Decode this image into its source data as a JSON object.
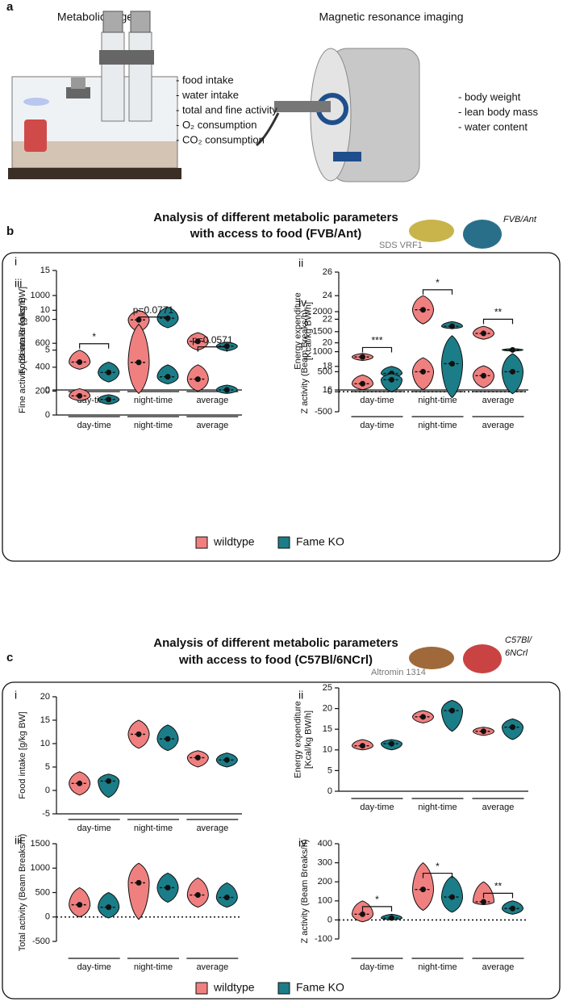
{
  "panel_a": {
    "label": "a",
    "left_title": "Metabolic cage",
    "left_items": [
      "- food intake",
      "- water intake",
      "- total and fine activity",
      "- O₂ consumption",
      "- CO₂ consumption"
    ],
    "right_title": "Magnetic resonance imaging",
    "right_items": [
      "- body weight",
      "- lean body mass",
      "- water content"
    ]
  },
  "panel_b": {
    "label": "b",
    "title": [
      "Analysis of different metabolic parameters",
      "with access to food (FVB/Ant)"
    ],
    "food": "SDS VRF1",
    "strain": [
      "FVB/Ant"
    ]
  },
  "panel_c": {
    "label": "c",
    "title": [
      "Analysis of different metabolic parameters",
      "with access to food (C57Bl/6NCrl)"
    ],
    "food": "Altromin 1314",
    "strain": [
      "C57Bl/",
      "6NCrl"
    ]
  },
  "chart_data": [
    {
      "type": "violin",
      "panel_label": "i",
      "y_label": [
        "Food intake [g/kg BW]"
      ],
      "ylim": [
        0,
        15
      ],
      "yticks": [
        0,
        5,
        10,
        15
      ],
      "zero_line": false,
      "categories": [
        "day-time",
        "night-time",
        "average"
      ],
      "series": [
        {
          "name": "wildtype",
          "color": "#f08080",
          "mins": [
            2.6,
            7.3,
            5.0
          ],
          "values": [
            3.5,
            8.8,
            6.1
          ],
          "maxs": [
            5.0,
            10.0,
            7.2
          ]
        },
        {
          "name": "Fame KO",
          "color": "#1b7d88",
          "mins": [
            1.0,
            7.8,
            4.9
          ],
          "values": [
            2.2,
            9.0,
            5.5
          ],
          "maxs": [
            3.5,
            10.4,
            6.0
          ]
        }
      ],
      "annotations": [
        "*",
        null,
        null
      ],
      "annotation_y": [
        5.8,
        null,
        null
      ]
    },
    {
      "type": "violin",
      "panel_label": "ii",
      "y_label": [
        "Energy expenditure",
        "[Kcal/kg BW/h]"
      ],
      "ylim": [
        16,
        26
      ],
      "yticks": [
        16,
        18,
        20,
        22,
        24,
        26
      ],
      "zero_line": false,
      "categories": [
        "day-time",
        "night-time",
        "average"
      ],
      "series": [
        {
          "name": "wildtype",
          "color": "#f08080",
          "mins": [
            18.5,
            21.6,
            20.3
          ],
          "values": [
            18.8,
            22.8,
            20.8
          ],
          "maxs": [
            19.1,
            24.0,
            21.4
          ]
        },
        {
          "name": "Fame KO",
          "color": "#1b7d88",
          "mins": [
            17.1,
            21.2,
            19.3
          ],
          "values": [
            17.4,
            21.4,
            19.4
          ],
          "maxs": [
            18.0,
            21.8,
            19.5
          ]
        }
      ],
      "annotations": [
        "***",
        "*",
        "**"
      ],
      "annotation_y": [
        19.6,
        24.5,
        22.0
      ]
    },
    {
      "type": "violin",
      "panel_label": "iii",
      "y_label": [
        "Fine activity (Beam Breaks/h)"
      ],
      "ylim": [
        0,
        1000
      ],
      "yticks": [
        0,
        200,
        400,
        600,
        800,
        1000
      ],
      "zero_line": false,
      "categories": [
        "day-time",
        "night-time",
        "average"
      ],
      "series": [
        {
          "name": "wildtype",
          "color": "#f08080",
          "mins": [
            120,
            180,
            200
          ],
          "values": [
            160,
            440,
            300
          ],
          "maxs": [
            220,
            760,
            420
          ]
        },
        {
          "name": "Fame KO",
          "color": "#1b7d88",
          "mins": [
            90,
            260,
            180
          ],
          "values": [
            130,
            320,
            210
          ],
          "maxs": [
            170,
            420,
            250
          ]
        }
      ],
      "annotations": [
        null,
        "p=0.0771",
        "p=0.0571"
      ],
      "annotation_y": [
        null,
        820,
        570
      ]
    },
    {
      "type": "violin",
      "panel_label": "iv",
      "y_label": [
        "Z activity (Beam Breaks/h)"
      ],
      "ylim": [
        -500,
        2000
      ],
      "yticks": [
        -500,
        0,
        500,
        1000,
        1500,
        2000
      ],
      "zero_line": true,
      "categories": [
        "day-time",
        "night-time",
        "average"
      ],
      "series": [
        {
          "name": "wildtype",
          "color": "#f08080",
          "mins": [
            50,
            50,
            100
          ],
          "values": [
            200,
            500,
            400
          ],
          "maxs": [
            420,
            850,
            650
          ]
        },
        {
          "name": "Fame KO",
          "color": "#1b7d88",
          "mins": [
            0,
            -150,
            -50
          ],
          "values": [
            300,
            700,
            500
          ],
          "maxs": [
            450,
            1400,
            950
          ]
        }
      ],
      "annotations": [
        null,
        null,
        null
      ],
      "annotation_y": [
        null,
        null,
        null
      ]
    },
    {
      "type": "violin",
      "panel_label": "i",
      "y_label": [
        "Food intake [g/kg BW]"
      ],
      "ylim": [
        -5,
        20
      ],
      "yticks": [
        -5,
        0,
        5,
        10,
        15,
        20
      ],
      "zero_line": false,
      "categories": [
        "day-time",
        "night-time",
        "average"
      ],
      "series": [
        {
          "name": "wildtype",
          "color": "#f08080",
          "mins": [
            -1,
            9,
            5
          ],
          "values": [
            1.5,
            12,
            7
          ],
          "maxs": [
            4,
            15,
            8.5
          ]
        },
        {
          "name": "Fame KO",
          "color": "#1b7d88",
          "mins": [
            -1.5,
            8.5,
            5
          ],
          "values": [
            2,
            11,
            6.5
          ],
          "maxs": [
            3.5,
            14,
            8
          ]
        }
      ],
      "annotations": [
        null,
        null,
        null
      ],
      "annotation_y": [
        null,
        null,
        null
      ]
    },
    {
      "type": "violin",
      "panel_label": "ii",
      "y_label": [
        "Energy expenditure",
        "[Kcal/kg BW/h]"
      ],
      "ylim": [
        0,
        25
      ],
      "yticks": [
        0,
        5,
        10,
        15,
        20,
        25
      ],
      "zero_line": false,
      "categories": [
        "day-time",
        "night-time",
        "average"
      ],
      "series": [
        {
          "name": "wildtype",
          "color": "#f08080",
          "mins": [
            10,
            16.5,
            13.5
          ],
          "values": [
            11,
            18,
            14.5
          ],
          "maxs": [
            12.5,
            19.5,
            15.5
          ]
        },
        {
          "name": "Fame KO",
          "color": "#1b7d88",
          "mins": [
            10,
            14.5,
            12.5
          ],
          "values": [
            11.5,
            19.5,
            15.5
          ],
          "maxs": [
            12.5,
            22,
            17.5
          ]
        }
      ],
      "annotations": [
        null,
        null,
        null
      ],
      "annotation_y": [
        null,
        null,
        null
      ]
    },
    {
      "type": "violin",
      "panel_label": "iii",
      "y_label": [
        "Total activity (Beam Breaks/h)"
      ],
      "ylim": [
        -500,
        1500
      ],
      "yticks": [
        -500,
        0,
        500,
        1000,
        1500
      ],
      "zero_line": true,
      "categories": [
        "day-time",
        "night-time",
        "average"
      ],
      "series": [
        {
          "name": "wildtype",
          "color": "#f08080",
          "mins": [
            0,
            -50,
            200
          ],
          "values": [
            250,
            700,
            450
          ],
          "maxs": [
            600,
            1100,
            800
          ]
        },
        {
          "name": "Fame KO",
          "color": "#1b7d88",
          "mins": [
            -20,
            300,
            200
          ],
          "values": [
            200,
            600,
            400
          ],
          "maxs": [
            500,
            900,
            700
          ]
        }
      ],
      "annotations": [
        null,
        null,
        null
      ],
      "annotation_y": [
        null,
        null,
        null
      ]
    },
    {
      "type": "violin",
      "panel_label": "iv",
      "y_label": [
        "Z activity (Beam Breaks/h)"
      ],
      "ylim": [
        -100,
        400
      ],
      "yticks": [
        -100,
        0,
        100,
        200,
        300,
        400
      ],
      "zero_line": true,
      "categories": [
        "day-time",
        "night-time",
        "average"
      ],
      "series": [
        {
          "name": "wildtype",
          "color": "#f08080",
          "mins": [
            -10,
            50,
            80
          ],
          "values": [
            30,
            160,
            95
          ],
          "maxs": [
            100,
            300,
            200
          ]
        },
        {
          "name": "Fame KO",
          "color": "#1b7d88",
          "mins": [
            0,
            40,
            30
          ],
          "values": [
            10,
            120,
            60
          ],
          "maxs": [
            30,
            230,
            100
          ]
        }
      ],
      "annotations": [
        "*",
        "*",
        "**"
      ],
      "annotation_y": [
        70,
        245,
        140
      ]
    }
  ]
}
